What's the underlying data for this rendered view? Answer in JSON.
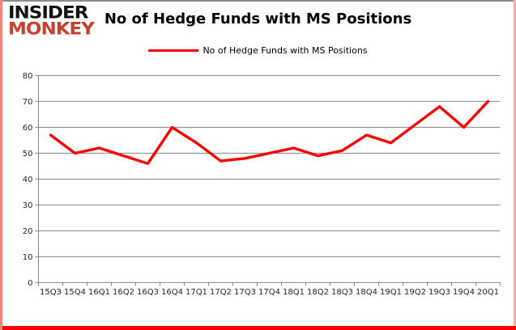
{
  "header": {
    "logo_line1": "INSIDER",
    "logo_line2": "MONKEY",
    "title": "No of Hedge Funds with MS Positions"
  },
  "legend": {
    "label": "No of Hedge Funds with MS Positions"
  },
  "colors": {
    "series_line": "#ff0000",
    "logo_black": "#141414",
    "logo_red": "#c8402e",
    "gridline": "#848484",
    "axis_text": "#262626",
    "border_top": "#8c8c8c",
    "border_right": "#eeb0a8",
    "border_bottom": "#ff0000",
    "border_left": "#f4837b"
  },
  "chart_data": {
    "type": "line",
    "title": "No of Hedge Funds with MS Positions",
    "categories": [
      "15Q3",
      "15Q4",
      "16Q1",
      "16Q2",
      "16Q3",
      "16Q4",
      "17Q1",
      "17Q2",
      "17Q3",
      "17Q4",
      "18Q1",
      "18Q2",
      "18Q3",
      "18Q4",
      "19Q1",
      "19Q2",
      "19Q3",
      "19Q4",
      "20Q1"
    ],
    "series": [
      {
        "name": "No of Hedge Funds with MS Positions",
        "values": [
          57,
          50,
          52,
          49,
          46,
          60,
          54,
          47,
          48,
          50,
          52,
          49,
          51,
          57,
          54,
          61,
          68,
          60,
          70
        ]
      }
    ],
    "xlabel": "",
    "ylabel": "",
    "ylim": [
      0,
      80
    ],
    "ytick_step": 10,
    "grid": true,
    "legend_position": "top-center"
  }
}
